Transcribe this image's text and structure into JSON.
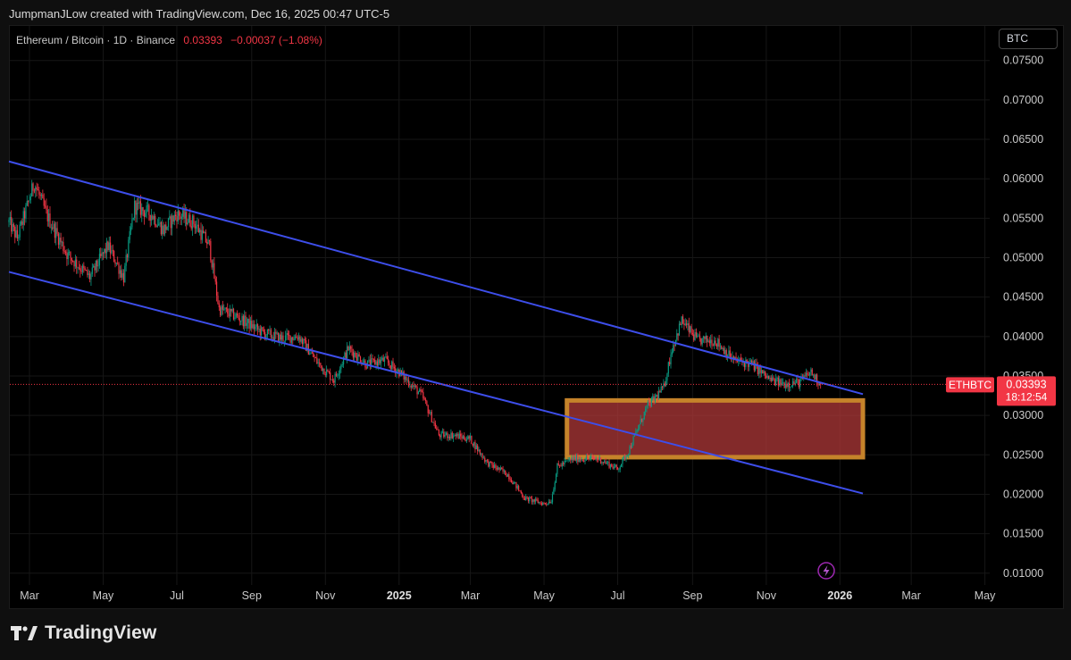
{
  "header": {
    "credit": "JumpmanJLow created with TradingView.com, Dec 16, 2025 00:47 UTC-5"
  },
  "symbol": {
    "name": "Ethereum / Bitcoin · 1D · Binance",
    "last": "0.03393",
    "change": "−0.00037 (−1.08%)",
    "currency": "BTC",
    "ticker": "ETHBTC",
    "ticker_price": "0.03393",
    "countdown": "18:12:54"
  },
  "footer": {
    "brand": "TradingView"
  },
  "colors": {
    "up": "#089981",
    "down": "#f23645",
    "channel": "#3d4eea",
    "zone_fill": "#b63a3a",
    "zone_border": "#c5832a"
  },
  "chart_data": {
    "type": "candlestick",
    "title": "Ethereum / Bitcoin · 1D · Binance",
    "ylabel": "BTC",
    "ylim": [
      0.0085,
      0.0795
    ],
    "xlim": [
      "2024-02-13",
      "2026-05-05"
    ],
    "x_ticks": [
      {
        "label": "Mar",
        "date": "2024-03-01",
        "bold": false
      },
      {
        "label": "May",
        "date": "2024-05-01",
        "bold": false
      },
      {
        "label": "Jul",
        "date": "2024-07-01",
        "bold": false
      },
      {
        "label": "Sep",
        "date": "2024-09-01",
        "bold": false
      },
      {
        "label": "Nov",
        "date": "2024-11-01",
        "bold": false
      },
      {
        "label": "2025",
        "date": "2025-01-01",
        "bold": true
      },
      {
        "label": "Mar",
        "date": "2025-03-01",
        "bold": false
      },
      {
        "label": "May",
        "date": "2025-05-01",
        "bold": false
      },
      {
        "label": "Jul",
        "date": "2025-07-01",
        "bold": false
      },
      {
        "label": "Sep",
        "date": "2025-09-01",
        "bold": false
      },
      {
        "label": "Nov",
        "date": "2025-11-01",
        "bold": false
      },
      {
        "label": "2026",
        "date": "2026-01-01",
        "bold": true
      },
      {
        "label": "Mar",
        "date": "2026-03-01",
        "bold": false
      },
      {
        "label": "May",
        "date": "2026-05-01",
        "bold": false
      }
    ],
    "y_ticks": [
      "0.01000",
      "0.01500",
      "0.02000",
      "0.02500",
      "0.03000",
      "0.03500",
      "0.04000",
      "0.04500",
      "0.05000",
      "0.05500",
      "0.06000",
      "0.06500",
      "0.07000",
      "0.07500"
    ],
    "price_anchors": [
      {
        "date": "2024-02-13",
        "price": 0.0545
      },
      {
        "date": "2024-02-20",
        "price": 0.0525
      },
      {
        "date": "2024-03-05",
        "price": 0.0595
      },
      {
        "date": "2024-03-15",
        "price": 0.0555
      },
      {
        "date": "2024-04-01",
        "price": 0.0505
      },
      {
        "date": "2024-04-20",
        "price": 0.0475
      },
      {
        "date": "2024-05-05",
        "price": 0.0515
      },
      {
        "date": "2024-05-18",
        "price": 0.0475
      },
      {
        "date": "2024-05-27",
        "price": 0.0565
      },
      {
        "date": "2024-06-10",
        "price": 0.0555
      },
      {
        "date": "2024-06-20",
        "price": 0.0535
      },
      {
        "date": "2024-07-01",
        "price": 0.0555
      },
      {
        "date": "2024-07-15",
        "price": 0.0545
      },
      {
        "date": "2024-07-28",
        "price": 0.0515
      },
      {
        "date": "2024-08-05",
        "price": 0.0435
      },
      {
        "date": "2024-08-20",
        "price": 0.0425
      },
      {
        "date": "2024-09-10",
        "price": 0.0405
      },
      {
        "date": "2024-09-25",
        "price": 0.0398
      },
      {
        "date": "2024-10-10",
        "price": 0.04
      },
      {
        "date": "2024-10-25",
        "price": 0.0368
      },
      {
        "date": "2024-11-08",
        "price": 0.0345
      },
      {
        "date": "2024-11-20",
        "price": 0.0385
      },
      {
        "date": "2024-12-05",
        "price": 0.0365
      },
      {
        "date": "2024-12-20",
        "price": 0.037
      },
      {
        "date": "2025-01-01",
        "price": 0.0355
      },
      {
        "date": "2025-01-20",
        "price": 0.0325
      },
      {
        "date": "2025-02-03",
        "price": 0.0275
      },
      {
        "date": "2025-02-15",
        "price": 0.0275
      },
      {
        "date": "2025-03-01",
        "price": 0.027
      },
      {
        "date": "2025-03-15",
        "price": 0.024
      },
      {
        "date": "2025-04-01",
        "price": 0.0225
      },
      {
        "date": "2025-04-15",
        "price": 0.0195
      },
      {
        "date": "2025-05-01",
        "price": 0.0188
      },
      {
        "date": "2025-05-07",
        "price": 0.0192
      },
      {
        "date": "2025-05-12",
        "price": 0.0235
      },
      {
        "date": "2025-05-25",
        "price": 0.0245
      },
      {
        "date": "2025-06-15",
        "price": 0.0245
      },
      {
        "date": "2025-07-01",
        "price": 0.0232
      },
      {
        "date": "2025-07-10",
        "price": 0.0255
      },
      {
        "date": "2025-07-25",
        "price": 0.031
      },
      {
        "date": "2025-08-08",
        "price": 0.0335
      },
      {
        "date": "2025-08-15",
        "price": 0.0385
      },
      {
        "date": "2025-08-23",
        "price": 0.042
      },
      {
        "date": "2025-09-05",
        "price": 0.0395
      },
      {
        "date": "2025-09-20",
        "price": 0.0395
      },
      {
        "date": "2025-10-05",
        "price": 0.037
      },
      {
        "date": "2025-10-20",
        "price": 0.0365
      },
      {
        "date": "2025-11-04",
        "price": 0.0345
      },
      {
        "date": "2025-11-15",
        "price": 0.034
      },
      {
        "date": "2025-11-28",
        "price": 0.0342
      },
      {
        "date": "2025-12-08",
        "price": 0.0355
      },
      {
        "date": "2025-12-16",
        "price": 0.0339
      }
    ],
    "channel_upper": [
      {
        "date": "2024-02-13",
        "price": 0.0622
      },
      {
        "date": "2026-01-20",
        "price": 0.0327
      }
    ],
    "channel_lower": [
      {
        "date": "2024-02-13",
        "price": 0.0482
      },
      {
        "date": "2026-01-20",
        "price": 0.0201
      }
    ],
    "demand_zone": {
      "start": "2025-05-20",
      "end": "2026-01-20",
      "top": 0.0319,
      "bottom": 0.0247
    },
    "last_price": 0.03393
  }
}
